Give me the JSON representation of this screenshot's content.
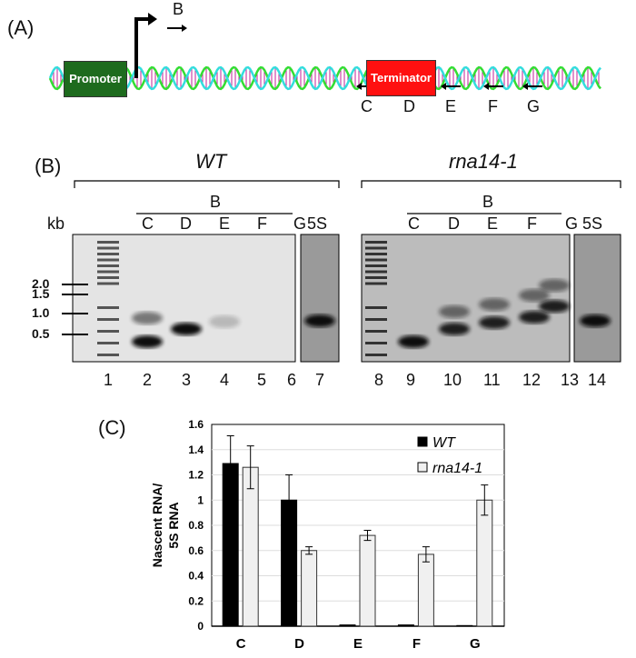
{
  "panel_a": {
    "label": "(A)",
    "promoter": "Promoter",
    "terminator": "Terminator",
    "forward_primer": "B",
    "reverse_primers": [
      "C",
      "D",
      "E",
      "F",
      "G"
    ],
    "colors": {
      "promoter": "#1e6b1e",
      "terminator": "#ff1010",
      "strand1": "#33dd33",
      "strand2": "#33dddd",
      "rungs": "#c0209a"
    }
  },
  "panel_b": {
    "label": "(B)",
    "kb_label": "kb",
    "size_markers": [
      "2.0",
      "1.5",
      "1.0",
      "0.5"
    ],
    "wt": {
      "title": "WT",
      "primer_bar": "B",
      "lanes_header": [
        "C",
        "D",
        "E",
        "F",
        "G"
      ],
      "control": "5S",
      "lane_numbers": [
        "1",
        "2",
        "3",
        "4",
        "5",
        "6",
        "7"
      ]
    },
    "mutant": {
      "title": "rna14-1",
      "primer_bar": "B",
      "lanes_header": [
        "C",
        "D",
        "E",
        "F",
        "G"
      ],
      "control": "5S",
      "lane_numbers": [
        "8",
        "9",
        "10",
        "11",
        "12",
        "13",
        "14"
      ]
    }
  },
  "panel_c": {
    "label": "(C)"
  },
  "chart_data": {
    "type": "bar",
    "categories": [
      "C",
      "D",
      "E",
      "F",
      "G"
    ],
    "ylabel": "Nascent RNA/ 5S RNA",
    "ylabel_lines": [
      "Nascent RNA/",
      "5S RNA"
    ],
    "ylim": [
      0,
      1.6
    ],
    "yticks": [
      "0",
      "0.2",
      "0.4",
      "0.6",
      "0.8",
      "1",
      "1.2",
      "1.4",
      "1.6"
    ],
    "grid": true,
    "legend": "top-right",
    "series": [
      {
        "name": "WT",
        "color": "#000000",
        "values": [
          1.29,
          1.0,
          0.01,
          0.01,
          0.005
        ],
        "errors": [
          0.22,
          0.2,
          0,
          0,
          0
        ]
      },
      {
        "name": "rna14-1",
        "color": "#f0f0f0",
        "values": [
          1.26,
          0.6,
          0.72,
          0.57,
          1.0
        ],
        "errors": [
          0.17,
          0.03,
          0.04,
          0.06,
          0.12
        ]
      }
    ]
  }
}
